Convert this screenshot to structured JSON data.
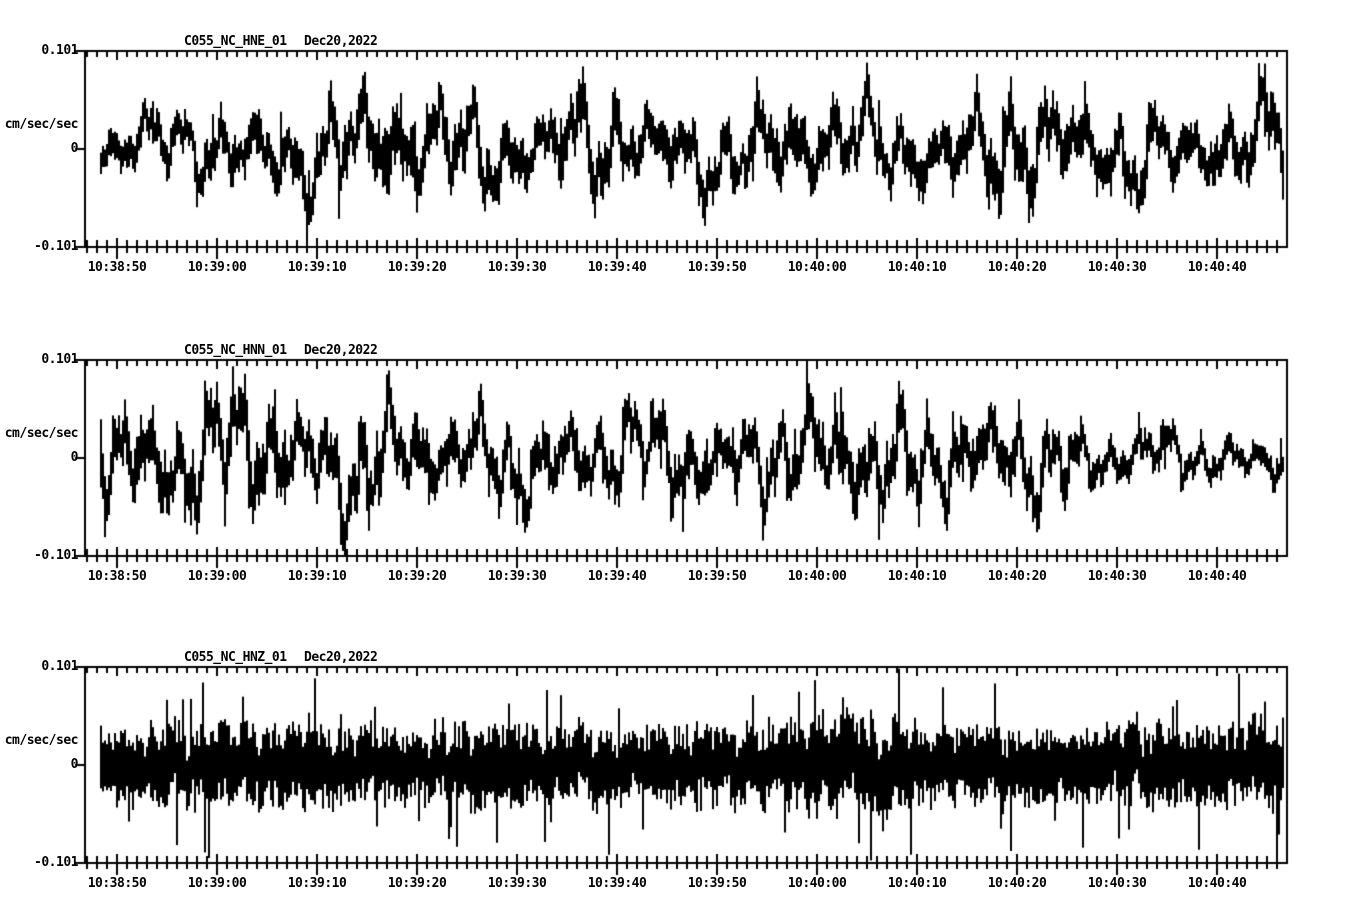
{
  "page": {
    "background_color": "#ffffff",
    "trace_color": "#000000",
    "description": "Three-channel strong-motion seismogram display"
  },
  "chart_data": [
    {
      "type": "line",
      "chart_kind": "seismogram-trace",
      "station_label": "C055_NC_HNE_01",
      "date_label": "Dec20,2022",
      "y_axis_unit": "cm/sec/sec",
      "y_max_label": "0.101",
      "y_zero_label": "0",
      "y_min_label": "-0.101",
      "ylim": [
        -0.101,
        0.101
      ],
      "window_seconds": 120,
      "x_major_tick_interval_s": 10,
      "x_minor_tick_interval_s": 1,
      "first_major_tick_offset_s": 3.2,
      "x_tick_labels": [
        "10:38:50",
        "10:39:00",
        "10:39:10",
        "10:39:20",
        "10:39:30",
        "10:39:40",
        "10:39:50",
        "10:40:00",
        "10:40:10",
        "10:40:20",
        "10:40:30",
        "10:40:40"
      ],
      "synth": {
        "seed": 11,
        "lf_period_s": 3.6,
        "hf_frac": 0.32,
        "spike_prob": 0.05,
        "envelope_t": [
          0,
          5,
          10,
          15,
          20,
          25,
          30,
          35,
          40,
          45,
          50,
          55,
          60,
          65,
          70,
          75,
          80,
          85,
          90,
          95,
          100,
          105,
          110,
          115,
          120
        ],
        "envelope_a": [
          0.04,
          0.05,
          0.056,
          0.064,
          0.072,
          0.078,
          0.092,
          0.075,
          0.08,
          0.062,
          0.085,
          0.066,
          0.072,
          0.06,
          0.088,
          0.07,
          0.065,
          0.072,
          0.082,
          0.092,
          0.066,
          0.07,
          0.062,
          0.08,
          0.075
        ]
      }
    },
    {
      "type": "line",
      "chart_kind": "seismogram-trace",
      "station_label": "C055_NC_HNN_01",
      "date_label": "Dec20,2022",
      "y_axis_unit": "cm/sec/sec",
      "y_max_label": "0.101",
      "y_zero_label": "0",
      "y_min_label": "-0.101",
      "ylim": [
        -0.101,
        0.101
      ],
      "window_seconds": 120,
      "x_major_tick_interval_s": 10,
      "x_minor_tick_interval_s": 1,
      "first_major_tick_offset_s": 3.2,
      "x_tick_labels": [
        "10:38:50",
        "10:39:00",
        "10:39:10",
        "10:39:20",
        "10:39:30",
        "10:39:40",
        "10:39:50",
        "10:40:00",
        "10:40:10",
        "10:40:20",
        "10:40:30",
        "10:40:40"
      ],
      "synth": {
        "seed": 23,
        "lf_period_s": 3.0,
        "hf_frac": 0.3,
        "spike_prob": 0.05,
        "envelope_t": [
          0,
          5,
          10,
          15,
          20,
          25,
          30,
          35,
          40,
          45,
          50,
          55,
          60,
          65,
          70,
          75,
          80,
          85,
          90,
          95,
          100,
          105,
          110,
          115,
          120
        ],
        "envelope_a": [
          0.06,
          0.092,
          0.1,
          0.096,
          0.09,
          0.086,
          0.09,
          0.072,
          0.066,
          0.07,
          0.076,
          0.07,
          0.082,
          0.07,
          0.075,
          0.09,
          0.085,
          0.075,
          0.086,
          0.07,
          0.055,
          0.046,
          0.04,
          0.038,
          0.042
        ]
      }
    },
    {
      "type": "line",
      "chart_kind": "seismogram-trace",
      "station_label": "C055_NC_HNZ_01",
      "date_label": "Dec20,2022",
      "y_axis_unit": "cm/sec/sec",
      "y_max_label": "0.101",
      "y_zero_label": "0",
      "y_min_label": "-0.101",
      "ylim": [
        -0.101,
        0.101
      ],
      "window_seconds": 120,
      "x_major_tick_interval_s": 10,
      "x_minor_tick_interval_s": 1,
      "first_major_tick_offset_s": 3.2,
      "x_tick_labels": [
        "10:38:50",
        "10:39:00",
        "10:39:10",
        "10:39:20",
        "10:39:30",
        "10:39:40",
        "10:39:50",
        "10:40:00",
        "10:40:10",
        "10:40:20",
        "10:40:30",
        "10:40:40"
      ],
      "synth": {
        "seed": 37,
        "lf_period_s": 2.4,
        "hf_frac": 0.78,
        "spike_prob": 0.12,
        "envelope_t": [
          0,
          5,
          10,
          15,
          20,
          25,
          30,
          35,
          40,
          45,
          50,
          55,
          60,
          65,
          70,
          75,
          80,
          85,
          90,
          95,
          100,
          105,
          110,
          115,
          120
        ],
        "envelope_a": [
          0.04,
          0.05,
          0.05,
          0.052,
          0.048,
          0.05,
          0.046,
          0.05,
          0.055,
          0.05,
          0.048,
          0.045,
          0.05,
          0.048,
          0.055,
          0.066,
          0.06,
          0.05,
          0.048,
          0.05,
          0.045,
          0.055,
          0.05,
          0.052,
          0.05
        ]
      }
    }
  ]
}
